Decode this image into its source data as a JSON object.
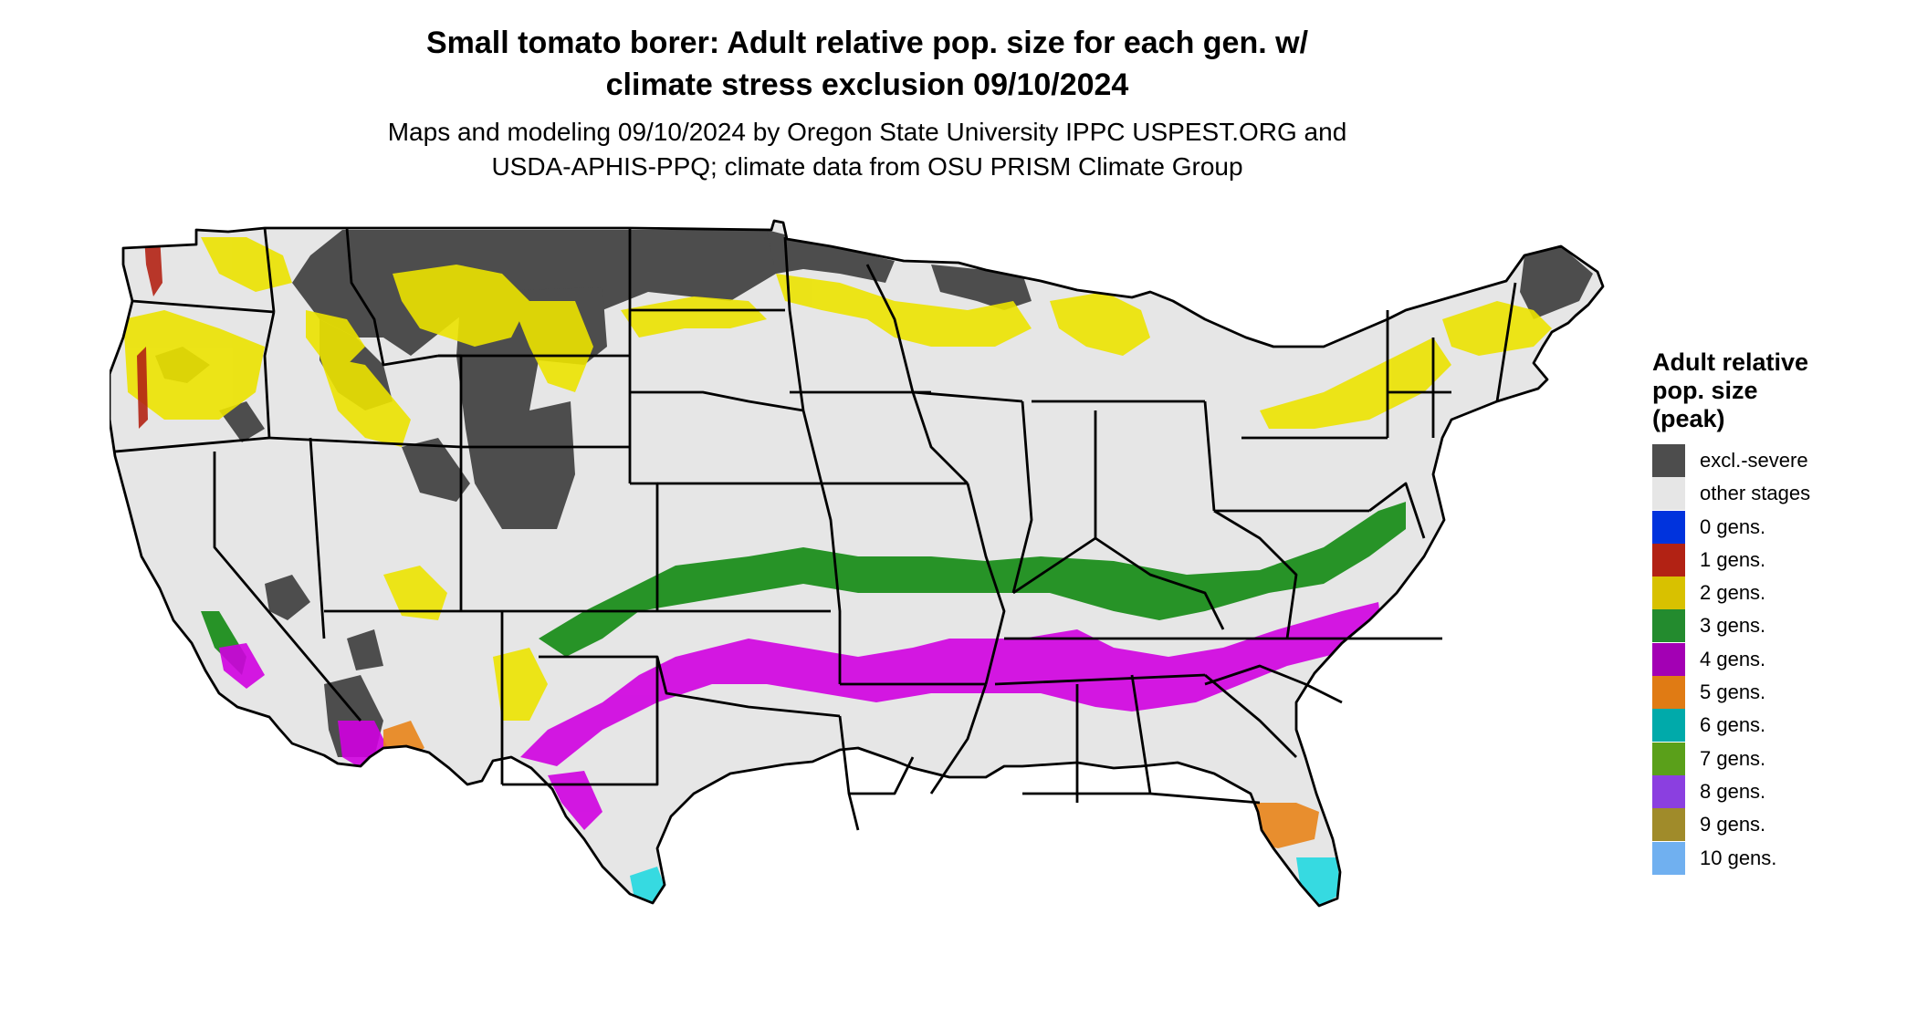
{
  "title": {
    "line1": "Small tomato borer: Adult relative pop. size for each gen. w/",
    "line2": "climate stress exclusion 09/10/2024"
  },
  "subtitle": {
    "line1": "Maps and modeling 09/10/2024 by Oregon State University IPPC USPEST.ORG and",
    "line2": "USDA-APHIS-PPQ; climate data from OSU PRISM Climate Group"
  },
  "legend": {
    "title_lines": [
      "Adult relative",
      "pop. size",
      "(peak)"
    ],
    "items": [
      {
        "label": "excl.-severe",
        "color": "#4d4d4d"
      },
      {
        "label": "other stages",
        "color": "#e6e6e6"
      },
      {
        "label": "0 gens.",
        "color": "#0033dd"
      },
      {
        "label": "1 gens.",
        "color": "#b22214"
      },
      {
        "label": "2 gens.",
        "color": "#d8c100"
      },
      {
        "label": "3 gens.",
        "color": "#238b2e"
      },
      {
        "label": "4 gens.",
        "color": "#a300b4"
      },
      {
        "label": "5 gens.",
        "color": "#e07b14"
      },
      {
        "label": "6 gens.",
        "color": "#00aaaa"
      },
      {
        "label": "7 gens.",
        "color": "#5aa01a"
      },
      {
        "label": "8 gens.",
        "color": "#8b3fe0"
      },
      {
        "label": "9 gens.",
        "color": "#a08b2a"
      },
      {
        "label": "10 gens.",
        "color": "#70b0f0"
      }
    ]
  },
  "map": {
    "land_color": "#e6e6e6",
    "border_color": "#000000",
    "zone_colors": {
      "excluded": "#4d4d4d",
      "gen1": "#b22214",
      "gen2": "#ece300",
      "gen3": "#128a12",
      "gen4": "#d000e0",
      "gen5": "#e8841a",
      "gen6": "#22d8e0"
    }
  }
}
